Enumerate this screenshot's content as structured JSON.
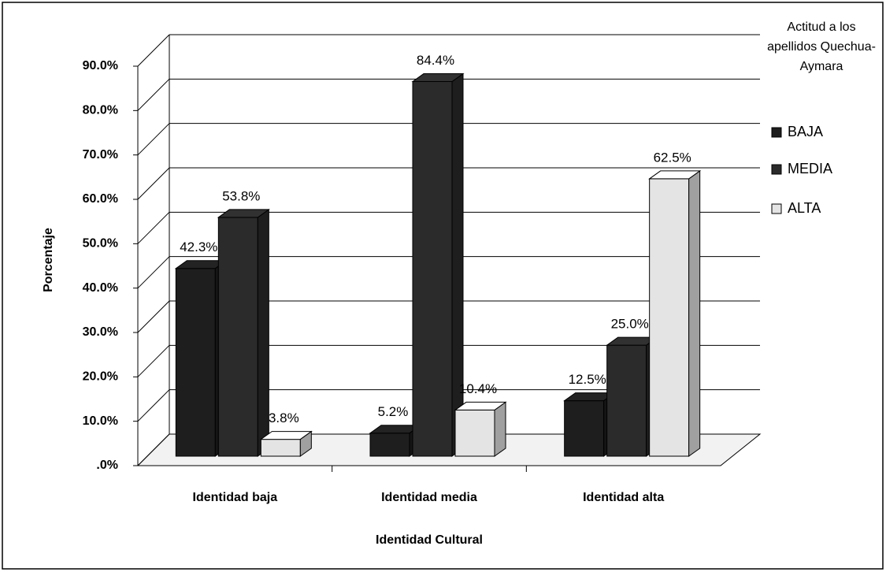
{
  "chart_data": {
    "type": "bar3d",
    "y_axis_label": "Porcentaje",
    "x_axis_label": "Identidad Cultural",
    "legend_title": "Actitud a los apellidos Quechua-Aymara",
    "categories": [
      "Identidad baja",
      "Identidad media",
      "Identidad alta"
    ],
    "series": [
      {
        "name": "BAJA",
        "color": "#1e1e1e",
        "values": [
          42.3,
          5.2,
          12.5
        ],
        "value_labels": [
          "42.3%",
          "5.2%",
          "12.5%"
        ]
      },
      {
        "name": "MEDIA",
        "color": "#2b2b2b",
        "values": [
          53.8,
          84.4,
          25.0
        ],
        "value_labels": [
          "53.8%",
          "84.4%",
          "25.0%"
        ]
      },
      {
        "name": "ALTA",
        "color": "#e4e4e4",
        "values": [
          3.8,
          10.4,
          62.5
        ],
        "value_labels": [
          "3.8%",
          "10.4%",
          "62.5%"
        ]
      }
    ],
    "ylim": [
      0,
      90
    ],
    "yticks": [
      {
        "value": 0,
        "label": ".0%"
      },
      {
        "value": 10,
        "label": "10.0%"
      },
      {
        "value": 20,
        "label": "20.0%"
      },
      {
        "value": 30,
        "label": "30.0%"
      },
      {
        "value": 40,
        "label": "40.0%"
      },
      {
        "value": 50,
        "label": "50.0%"
      },
      {
        "value": 60,
        "label": "60.0%"
      },
      {
        "value": 70,
        "label": "70.0%"
      },
      {
        "value": 80,
        "label": "80.0%"
      },
      {
        "value": 90,
        "label": "90.0%"
      }
    ],
    "grid": true,
    "legend": "right"
  }
}
